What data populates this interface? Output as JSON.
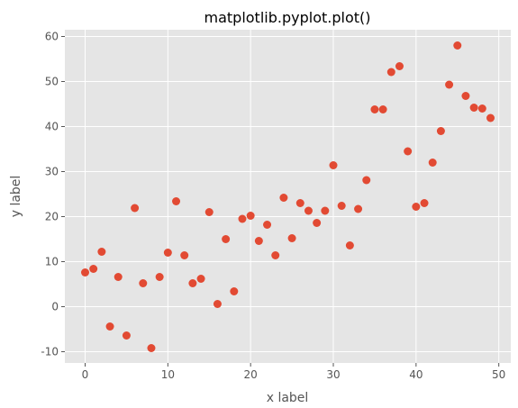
{
  "chart_data": {
    "type": "scatter",
    "title": "matplotlib.pyplot.plot()",
    "xlabel": "x label",
    "ylabel": "y label",
    "xlim": [
      -2.45,
      51.45
    ],
    "ylim": [
      -12.5,
      61.5
    ],
    "xticks": [
      0,
      10,
      20,
      30,
      40,
      50
    ],
    "yticks": [
      -10,
      0,
      10,
      20,
      30,
      40,
      50,
      60
    ],
    "grid": true,
    "colors": {
      "background": "#e5e5e5",
      "grid": "#ffffff",
      "marker": "#e24a33"
    },
    "series": [
      {
        "x": [
          0,
          1,
          2,
          3,
          4,
          5,
          6,
          7,
          8,
          9,
          10,
          11,
          12,
          13,
          14,
          15,
          16,
          17,
          18,
          19,
          20,
          21,
          22,
          23,
          24,
          25,
          26,
          27,
          28,
          29,
          30,
          31,
          32,
          33,
          34,
          35,
          36,
          37,
          38,
          39,
          40,
          41,
          42,
          43,
          44,
          45,
          46,
          47,
          48,
          49
        ],
        "y": [
          7.6,
          8.4,
          12.2,
          -4.4,
          6.6,
          -6.4,
          21.9,
          5.2,
          -9.2,
          6.6,
          12.0,
          23.4,
          11.4,
          5.2,
          6.2,
          21.0,
          0.6,
          15.0,
          3.4,
          19.5,
          20.2,
          14.6,
          18.2,
          11.4,
          24.2,
          15.2,
          23.0,
          21.3,
          18.6,
          21.3,
          31.4,
          22.4,
          13.6,
          21.7,
          28.1,
          43.8,
          43.8,
          52.1,
          53.4,
          34.5,
          22.2,
          23.0,
          32.0,
          39.0,
          49.3,
          58.0,
          46.8,
          44.2,
          44.0,
          41.9
        ]
      }
    ]
  }
}
